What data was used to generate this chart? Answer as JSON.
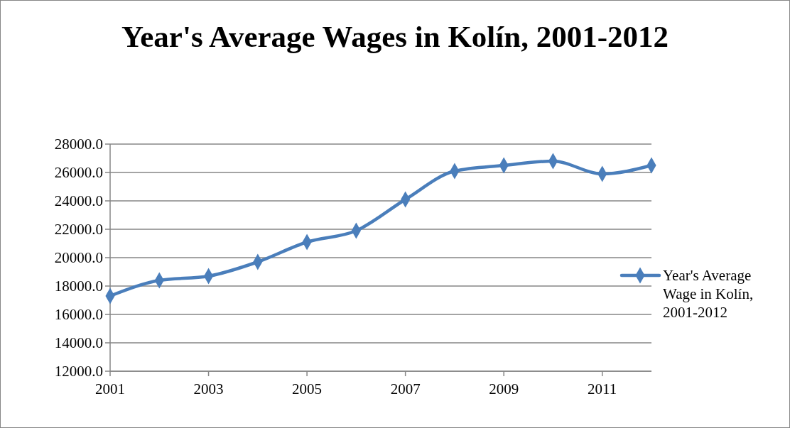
{
  "chart_data": {
    "type": "line",
    "title": "Year's Average Wages in Kolín, 2001-2012",
    "x": [
      2001,
      2002,
      2003,
      2004,
      2005,
      2006,
      2007,
      2008,
      2009,
      2010,
      2011,
      2012
    ],
    "series": [
      {
        "name": "Year's Average Wage in Kolín, 2001-2012",
        "color": "#4a7ebb",
        "values": [
          17300,
          18400,
          18700,
          19700,
          21100,
          21900,
          24100,
          26100,
          26500,
          26800,
          25900,
          26500
        ]
      }
    ],
    "xlim": [
      2001,
      2012
    ],
    "xticks": [
      2001,
      2003,
      2005,
      2007,
      2009,
      2011
    ],
    "ylim": [
      12000,
      28000
    ],
    "yticks": [
      {
        "value": 12000,
        "label": "12000.0"
      },
      {
        "value": 14000,
        "label": "14000.0"
      },
      {
        "value": 16000,
        "label": "16000.0"
      },
      {
        "value": 18000,
        "label": "18000.0"
      },
      {
        "value": 20000,
        "label": "20000.0"
      },
      {
        "value": 22000,
        "label": "22000.0"
      },
      {
        "value": 24000,
        "label": "24000.0"
      },
      {
        "value": 26000,
        "label": "26000.0"
      },
      {
        "value": 28000,
        "label": "28000.0"
      }
    ],
    "grid": "y",
    "legend": "right",
    "marker": "diamond",
    "line_style": "solid"
  }
}
